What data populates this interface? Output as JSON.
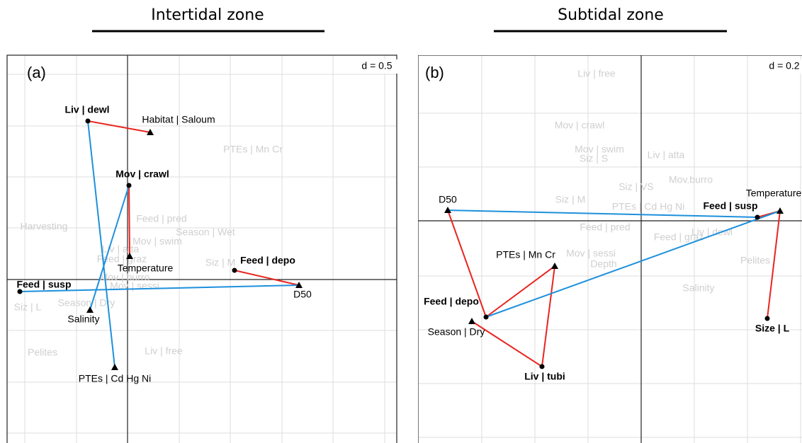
{
  "titles": [
    "Intertidal zone",
    "Subtidal zone"
  ],
  "panels": [
    {
      "label": "(a)",
      "scale": "d = 0.5",
      "nodes": [
        {
          "label": "Liv | dewl",
          "style": "bold",
          "marker": "dot"
        },
        {
          "label": "Habitat | Saloum",
          "style": "normal",
          "marker": "triangle"
        },
        {
          "label": "Mov | crawl",
          "style": "bold",
          "marker": "dot"
        },
        {
          "label": "Temperature",
          "style": "normal",
          "marker": "triangle"
        },
        {
          "label": "Feed | depo",
          "style": "bold",
          "marker": "dot"
        },
        {
          "label": "D50",
          "style": "normal",
          "marker": "triangle"
        },
        {
          "label": "Feed | susp",
          "style": "bold",
          "marker": "dot"
        },
        {
          "label": "Salinity",
          "style": "normal",
          "marker": "triangle"
        },
        {
          "label": "PTEs | Cd Hg Ni",
          "style": "normal",
          "marker": "triangle"
        },
        {
          "label": "PTEs | Mn Cr",
          "style": "faded"
        },
        {
          "label": "Harvesting",
          "style": "faded"
        },
        {
          "label": "Feed | pred",
          "style": "faded"
        },
        {
          "label": "Season | Wet",
          "style": "faded"
        },
        {
          "label": "Mov | swim",
          "style": "faded"
        },
        {
          "label": "Liv | atta",
          "style": "faded"
        },
        {
          "label": "Feed | graz",
          "style": "faded"
        },
        {
          "label": "Siz | M",
          "style": "faded"
        },
        {
          "label": "Mov | burro",
          "style": "faded"
        },
        {
          "label": "Mov | sessi",
          "style": "faded"
        },
        {
          "label": "Season | Dry",
          "style": "faded"
        },
        {
          "label": "Siz | L",
          "style": "faded"
        },
        {
          "label": "Pelites",
          "style": "faded"
        },
        {
          "label": "Liv | free",
          "style": "faded"
        }
      ]
    },
    {
      "label": "(b)",
      "scale": "d = 0.2",
      "nodes": [
        {
          "label": "D50",
          "style": "normal",
          "marker": "triangle"
        },
        {
          "label": "Temperature",
          "style": "normal",
          "marker": "triangle"
        },
        {
          "label": "Feed | susp",
          "style": "bold",
          "marker": "dot"
        },
        {
          "label": "PTEs | Mn Cr",
          "style": "normal",
          "marker": "triangle"
        },
        {
          "label": "Feed | depo",
          "style": "bold",
          "marker": "dot"
        },
        {
          "label": "Season | Dry",
          "style": "normal",
          "marker": "triangle"
        },
        {
          "label": "Liv | tubi",
          "style": "bold",
          "marker": "dot"
        },
        {
          "label": "Size | L",
          "style": "bold",
          "marker": "dot"
        },
        {
          "label": "Liv | free",
          "style": "faded"
        },
        {
          "label": "Mov | crawl",
          "style": "faded"
        },
        {
          "label": "Mov | swim",
          "style": "faded"
        },
        {
          "label": "Siz | S",
          "style": "faded"
        },
        {
          "label": "Liv | atta",
          "style": "faded"
        },
        {
          "label": "Mov.burro",
          "style": "faded"
        },
        {
          "label": "Siz | VS",
          "style": "faded"
        },
        {
          "label": "Siz | M",
          "style": "faded"
        },
        {
          "label": "PTEs | Cd Hg Ni",
          "style": "faded"
        },
        {
          "label": "Feed | pred",
          "style": "faded"
        },
        {
          "label": "Feed | graz",
          "style": "faded"
        },
        {
          "label": "Liv | dewl",
          "style": "faded"
        },
        {
          "label": "Mov | sessi",
          "style": "faded"
        },
        {
          "label": "Depth",
          "style": "faded"
        },
        {
          "label": "Pelites",
          "style": "faded"
        },
        {
          "label": "Salinity",
          "style": "faded"
        }
      ]
    }
  ]
}
